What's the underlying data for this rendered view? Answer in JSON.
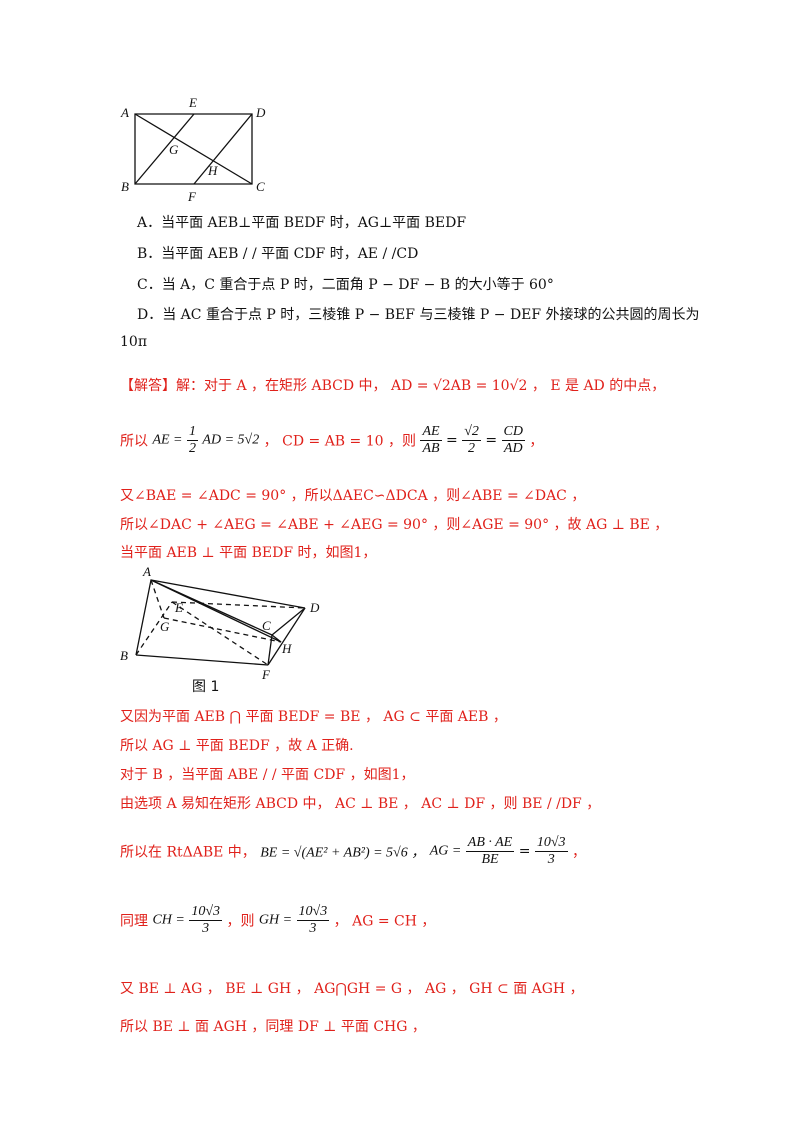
{
  "figure_top": {
    "labels": [
      "A",
      "E",
      "D",
      "G",
      "H",
      "B",
      "F",
      "C"
    ]
  },
  "options": [
    "A．当平面 AEB⊥平面 BEDF 时，AG⊥平面 BEDF",
    "B．当平面 AEB / / 平面 CDF 时，AE / /CD",
    "C．当 A，C 重合于点 P 时，二面角 P − DF − B 的大小等于 60°",
    "D．当 AC 重合于点 P 时，三棱锥 P − BEF 与三棱锥 P − DEF 外接球的公共圆的周长为",
    "10π"
  ],
  "solution": {
    "l1_tag": "【解答】",
    "l1_text": "解：对于 A ，在矩形 ABCD 中， AD = √2AB = 10√2 ， E 是 AD 的中点，",
    "l2_prefix": "所以",
    "l2_ae": "AE =",
    "l2_half_num": "1",
    "l2_half_den": "2",
    "l2_ae_rest": "AD = 5√2",
    "l2_cd": "， CD = AB = 10 ，则",
    "l2_f1_num": "AE",
    "l2_f1_den": "AB",
    "l2_eq": "=",
    "l2_f2_num": "√2",
    "l2_f2_den": "2",
    "l2_f3_num": "CD",
    "l2_f3_den": "AD",
    "l2_end": "，",
    "l3": "又∠BAE = ∠ADC = 90° ，所以ΔAEC∽ΔDCA ，则∠ABE = ∠DAC ，",
    "l4": "所以∠DAC + ∠AEG = ∠ABE + ∠AEG = 90° ，则∠AGE = 90° ，故 AG ⊥ BE ，",
    "l5": "当平面 AEB ⊥ 平面 BEDF 时，如图1，",
    "fig1_caption": "图 1",
    "l6": "又因为平面 AEB ⋂ 平面 BEDF = BE ， AG ⊂ 平面 AEB ，",
    "l7": "所以 AG ⊥ 平面 BEDF ，故 A 正确.",
    "l8": "对于 B ，当平面 ABE / / 平面 CDF ，如图1，",
    "l9": "由选项 A 易知在矩形 ABCD 中， AC ⊥ BE ， AC ⊥ DF ，则 BE / /DF ，",
    "l10_prefix": "所以在 RtΔABE 中，",
    "l10_be": "BE = √(AE² + AB²) = 5√6 ，",
    "l10_ag": "AG =",
    "l10_ag_num": "AB · AE",
    "l10_ag_den": "BE",
    "l10_ag_eq": "=",
    "l10_ag2_num": "10√3",
    "l10_ag2_den": "3",
    "l10_end": "，",
    "l11_prefix": "同理",
    "l11_ch": "CH =",
    "l11_ch_num": "10√3",
    "l11_ch_den": "3",
    "l11_mid": "，则",
    "l11_gh": "GH =",
    "l11_gh_num": "10√3",
    "l11_gh_den": "3",
    "l11_end": "， AG = CH ，",
    "l12": "又 BE ⊥ AG ， BE ⊥ GH ， AG⋂GH = G ， AG ， GH ⊂ 面 AGH ，",
    "l13": "所以 BE ⊥ 面 AGH ，同理 DF ⊥ 平面 CHG ，"
  },
  "figure1": {
    "labels": [
      "A",
      "E",
      "D",
      "G",
      "C",
      "H",
      "B",
      "F"
    ]
  }
}
